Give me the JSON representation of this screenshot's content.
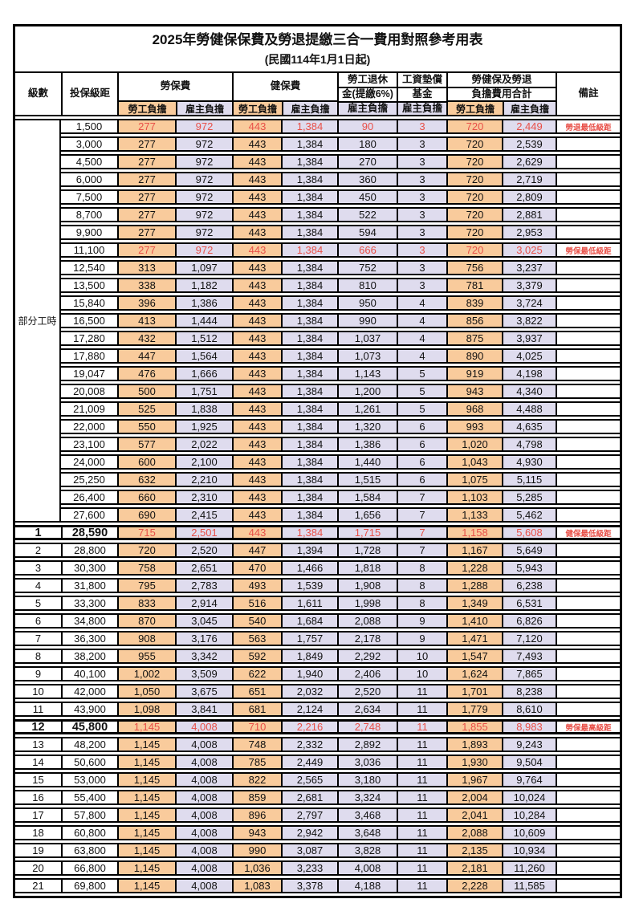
{
  "table": {
    "title": "2025年勞健保保費及勞退提繳三合一費用對照參考用表",
    "subtitle": "(民國114年1月1日起)",
    "header": {
      "level": "級數",
      "salary": "投保級距",
      "labor": "勞保費",
      "health": "健保費",
      "pension_line1": "勞工退休",
      "pension_line2": "金(提繳6%)",
      "wage_fund_line1": "工資墊償",
      "wage_fund_line2": "基金",
      "total_line1": "勞健保及勞退",
      "total_line2": "負擔費用合計",
      "remark": "備註",
      "employee": "勞工負擔",
      "employer": "雇主負擔"
    },
    "groups": [
      {
        "label": "部分工時",
        "merged": true,
        "rows": [
          {
            "salary": "1,500",
            "v": [
              "277",
              "972",
              "443",
              "1,384",
              "90",
              "3",
              "720",
              "2,449"
            ],
            "remark": "勞退最低級距",
            "red": true,
            "bold": false
          },
          {
            "salary": "3,000",
            "v": [
              "277",
              "972",
              "443",
              "1,384",
              "180",
              "3",
              "720",
              "2,539"
            ],
            "remark": "",
            "red": false,
            "bold": false
          },
          {
            "salary": "4,500",
            "v": [
              "277",
              "972",
              "443",
              "1,384",
              "270",
              "3",
              "720",
              "2,629"
            ],
            "remark": "",
            "red": false,
            "bold": false
          },
          {
            "salary": "6,000",
            "v": [
              "277",
              "972",
              "443",
              "1,384",
              "360",
              "3",
              "720",
              "2,719"
            ],
            "remark": "",
            "red": false,
            "bold": false
          },
          {
            "salary": "7,500",
            "v": [
              "277",
              "972",
              "443",
              "1,384",
              "450",
              "3",
              "720",
              "2,809"
            ],
            "remark": "",
            "red": false,
            "bold": false
          },
          {
            "salary": "8,700",
            "v": [
              "277",
              "972",
              "443",
              "1,384",
              "522",
              "3",
              "720",
              "2,881"
            ],
            "remark": "",
            "red": false,
            "bold": false
          },
          {
            "salary": "9,900",
            "v": [
              "277",
              "972",
              "443",
              "1,384",
              "594",
              "3",
              "720",
              "2,953"
            ],
            "remark": "",
            "red": false,
            "bold": false
          },
          {
            "salary": "11,100",
            "v": [
              "277",
              "972",
              "443",
              "1,384",
              "666",
              "3",
              "720",
              "3,025"
            ],
            "remark": "勞保最低級距",
            "red": true,
            "bold": false
          },
          {
            "salary": "12,540",
            "v": [
              "313",
              "1,097",
              "443",
              "1,384",
              "752",
              "3",
              "756",
              "3,237"
            ],
            "remark": "",
            "red": false,
            "bold": false
          },
          {
            "salary": "13,500",
            "v": [
              "338",
              "1,182",
              "443",
              "1,384",
              "810",
              "3",
              "781",
              "3,379"
            ],
            "remark": "",
            "red": false,
            "bold": false
          },
          {
            "salary": "15,840",
            "v": [
              "396",
              "1,386",
              "443",
              "1,384",
              "950",
              "4",
              "839",
              "3,724"
            ],
            "remark": "",
            "red": false,
            "bold": false
          },
          {
            "salary": "16,500",
            "v": [
              "413",
              "1,444",
              "443",
              "1,384",
              "990",
              "4",
              "856",
              "3,822"
            ],
            "remark": "",
            "red": false,
            "bold": false
          },
          {
            "salary": "17,280",
            "v": [
              "432",
              "1,512",
              "443",
              "1,384",
              "1,037",
              "4",
              "875",
              "3,937"
            ],
            "remark": "",
            "red": false,
            "bold": false
          },
          {
            "salary": "17,880",
            "v": [
              "447",
              "1,564",
              "443",
              "1,384",
              "1,073",
              "4",
              "890",
              "4,025"
            ],
            "remark": "",
            "red": false,
            "bold": false
          },
          {
            "salary": "19,047",
            "v": [
              "476",
              "1,666",
              "443",
              "1,384",
              "1,143",
              "5",
              "919",
              "4,198"
            ],
            "remark": "",
            "red": false,
            "bold": false
          },
          {
            "salary": "20,008",
            "v": [
              "500",
              "1,751",
              "443",
              "1,384",
              "1,200",
              "5",
              "943",
              "4,340"
            ],
            "remark": "",
            "red": false,
            "bold": false
          },
          {
            "salary": "21,009",
            "v": [
              "525",
              "1,838",
              "443",
              "1,384",
              "1,261",
              "5",
              "968",
              "4,488"
            ],
            "remark": "",
            "red": false,
            "bold": false
          },
          {
            "salary": "22,000",
            "v": [
              "550",
              "1,925",
              "443",
              "1,384",
              "1,320",
              "6",
              "993",
              "4,635"
            ],
            "remark": "",
            "red": false,
            "bold": false
          },
          {
            "salary": "23,100",
            "v": [
              "577",
              "2,022",
              "443",
              "1,384",
              "1,386",
              "6",
              "1,020",
              "4,798"
            ],
            "remark": "",
            "red": false,
            "bold": false
          },
          {
            "salary": "24,000",
            "v": [
              "600",
              "2,100",
              "443",
              "1,384",
              "1,440",
              "6",
              "1,043",
              "4,930"
            ],
            "remark": "",
            "red": false,
            "bold": false
          },
          {
            "salary": "25,250",
            "v": [
              "632",
              "2,210",
              "443",
              "1,384",
              "1,515",
              "6",
              "1,075",
              "5,115"
            ],
            "remark": "",
            "red": false,
            "bold": false
          },
          {
            "salary": "26,400",
            "v": [
              "660",
              "2,310",
              "443",
              "1,384",
              "1,584",
              "7",
              "1,103",
              "5,285"
            ],
            "remark": "",
            "red": false,
            "bold": false
          },
          {
            "salary": "27,600",
            "v": [
              "690",
              "2,415",
              "443",
              "1,384",
              "1,656",
              "7",
              "1,133",
              "5,462"
            ],
            "remark": "",
            "red": false,
            "bold": false
          }
        ]
      },
      {
        "label": "",
        "merged": false,
        "rows": [
          {
            "level": "1",
            "salary": "28,590",
            "v": [
              "715",
              "2,501",
              "443",
              "1,384",
              "1,715",
              "7",
              "1,158",
              "5,608"
            ],
            "remark": "健保最低級距",
            "red": true,
            "bold": true
          },
          {
            "level": "2",
            "salary": "28,800",
            "v": [
              "720",
              "2,520",
              "447",
              "1,394",
              "1,728",
              "7",
              "1,167",
              "5,649"
            ],
            "remark": "",
            "red": false,
            "bold": false
          },
          {
            "level": "3",
            "salary": "30,300",
            "v": [
              "758",
              "2,651",
              "470",
              "1,466",
              "1,818",
              "8",
              "1,228",
              "5,943"
            ],
            "remark": "",
            "red": false,
            "bold": false
          },
          {
            "level": "4",
            "salary": "31,800",
            "v": [
              "795",
              "2,783",
              "493",
              "1,539",
              "1,908",
              "8",
              "1,288",
              "6,238"
            ],
            "remark": "",
            "red": false,
            "bold": false
          },
          {
            "level": "5",
            "salary": "33,300",
            "v": [
              "833",
              "2,914",
              "516",
              "1,611",
              "1,998",
              "8",
              "1,349",
              "6,531"
            ],
            "remark": "",
            "red": false,
            "bold": false
          },
          {
            "level": "6",
            "salary": "34,800",
            "v": [
              "870",
              "3,045",
              "540",
              "1,684",
              "2,088",
              "9",
              "1,410",
              "6,826"
            ],
            "remark": "",
            "red": false,
            "bold": false
          },
          {
            "level": "7",
            "salary": "36,300",
            "v": [
              "908",
              "3,176",
              "563",
              "1,757",
              "2,178",
              "9",
              "1,471",
              "7,120"
            ],
            "remark": "",
            "red": false,
            "bold": false
          },
          {
            "level": "8",
            "salary": "38,200",
            "v": [
              "955",
              "3,342",
              "592",
              "1,849",
              "2,292",
              "10",
              "1,547",
              "7,493"
            ],
            "remark": "",
            "red": false,
            "bold": false
          },
          {
            "level": "9",
            "salary": "40,100",
            "v": [
              "1,002",
              "3,509",
              "622",
              "1,940",
              "2,406",
              "10",
              "1,624",
              "7,865"
            ],
            "remark": "",
            "red": false,
            "bold": false
          },
          {
            "level": "10",
            "salary": "42,000",
            "v": [
              "1,050",
              "3,675",
              "651",
              "2,032",
              "2,520",
              "11",
              "1,701",
              "8,238"
            ],
            "remark": "",
            "red": false,
            "bold": false
          },
          {
            "level": "11",
            "salary": "43,900",
            "v": [
              "1,098",
              "3,841",
              "681",
              "2,124",
              "2,634",
              "11",
              "1,779",
              "8,610"
            ],
            "remark": "",
            "red": false,
            "bold": false
          },
          {
            "level": "12",
            "salary": "45,800",
            "v": [
              "1,145",
              "4,008",
              "710",
              "2,216",
              "2,748",
              "11",
              "1,855",
              "8,983"
            ],
            "remark": "勞保最高級距",
            "red": true,
            "bold": true
          },
          {
            "level": "13",
            "salary": "48,200",
            "v": [
              "1,145",
              "4,008",
              "748",
              "2,332",
              "2,892",
              "11",
              "1,893",
              "9,243"
            ],
            "remark": "",
            "red": false,
            "bold": false
          },
          {
            "level": "14",
            "salary": "50,600",
            "v": [
              "1,145",
              "4,008",
              "785",
              "2,449",
              "3,036",
              "11",
              "1,930",
              "9,504"
            ],
            "remark": "",
            "red": false,
            "bold": false
          },
          {
            "level": "15",
            "salary": "53,000",
            "v": [
              "1,145",
              "4,008",
              "822",
              "2,565",
              "3,180",
              "11",
              "1,967",
              "9,764"
            ],
            "remark": "",
            "red": false,
            "bold": false
          },
          {
            "level": "16",
            "salary": "55,400",
            "v": [
              "1,145",
              "4,008",
              "859",
              "2,681",
              "3,324",
              "11",
              "2,004",
              "10,024"
            ],
            "remark": "",
            "red": false,
            "bold": false
          },
          {
            "level": "17",
            "salary": "57,800",
            "v": [
              "1,145",
              "4,008",
              "896",
              "2,797",
              "3,468",
              "11",
              "2,041",
              "10,284"
            ],
            "remark": "",
            "red": false,
            "bold": false
          },
          {
            "level": "18",
            "salary": "60,800",
            "v": [
              "1,145",
              "4,008",
              "943",
              "2,942",
              "3,648",
              "11",
              "2,088",
              "10,609"
            ],
            "remark": "",
            "red": false,
            "bold": false
          },
          {
            "level": "19",
            "salary": "63,800",
            "v": [
              "1,145",
              "4,008",
              "990",
              "3,087",
              "3,828",
              "11",
              "2,135",
              "10,934"
            ],
            "remark": "",
            "red": false,
            "bold": false
          },
          {
            "level": "20",
            "salary": "66,800",
            "v": [
              "1,145",
              "4,008",
              "1,036",
              "3,233",
              "4,008",
              "11",
              "2,181",
              "11,260"
            ],
            "remark": "",
            "red": false,
            "bold": false
          },
          {
            "level": "21",
            "salary": "69,800",
            "v": [
              "1,145",
              "4,008",
              "1,083",
              "3,378",
              "4,188",
              "11",
              "2,228",
              "11,585"
            ],
            "remark": "",
            "red": false,
            "bold": false
          }
        ]
      }
    ]
  },
  "colors": {
    "employee_bg": "#f9cb9c",
    "employer_bg": "#dfdcee",
    "highlight_text": "#e85048"
  }
}
